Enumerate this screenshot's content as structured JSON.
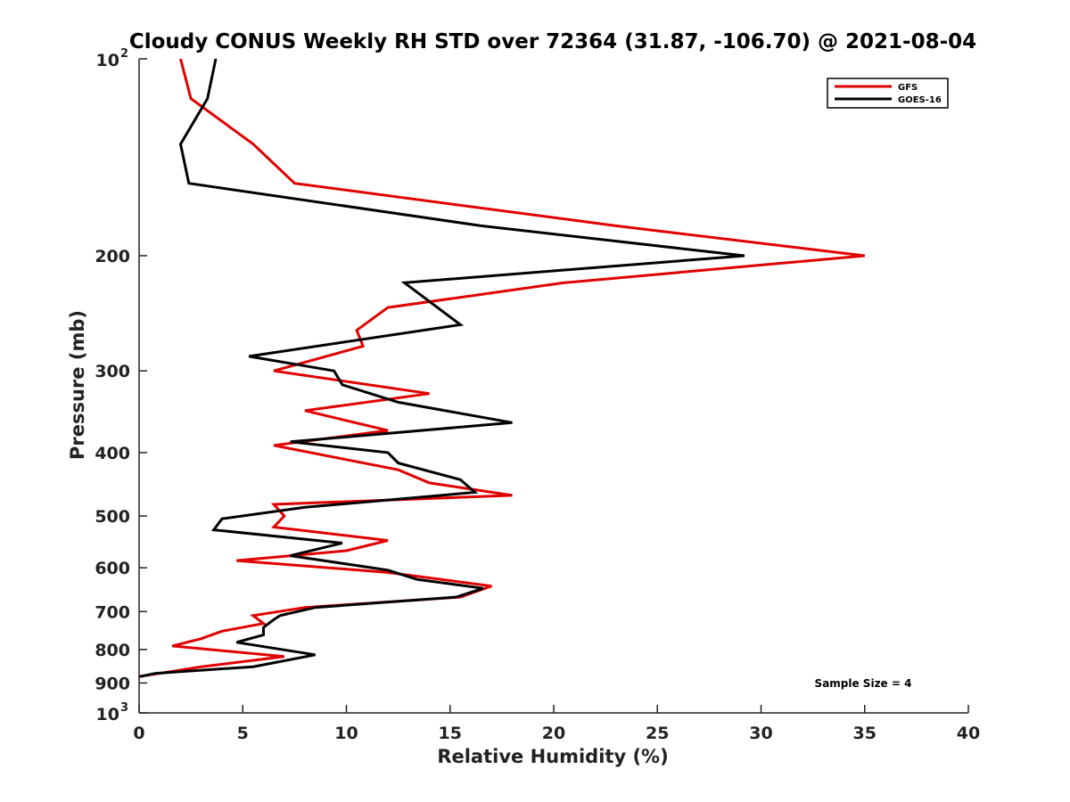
{
  "chart_data": {
    "type": "line",
    "title": "Cloudy CONUS Weekly RH STD over 72364 (31.87, -106.70) @ 2021-08-04",
    "xlabel": "Relative Humidity (%)",
    "ylabel": "Pressure (mb)",
    "xlim": [
      0,
      40
    ],
    "ylim": [
      100,
      1000
    ],
    "y_scale": "log",
    "y_reversed": true,
    "grid": false,
    "legend_position": "top-right",
    "x_ticks": [
      "0",
      "5",
      "10",
      "15",
      "20",
      "25",
      "30",
      "35",
      "40"
    ],
    "y_ticks": [
      {
        "value": 100,
        "base": "10",
        "exp": "2"
      },
      {
        "value": 200,
        "label": "200"
      },
      {
        "value": 300,
        "label": "300"
      },
      {
        "value": 400,
        "label": "400"
      },
      {
        "value": 500,
        "label": "500"
      },
      {
        "value": 600,
        "label": "600"
      },
      {
        "value": 700,
        "label": "700"
      },
      {
        "value": 800,
        "label": "800"
      },
      {
        "value": 900,
        "label": "900"
      },
      {
        "value": 1000,
        "base": "10",
        "exp": "3"
      }
    ],
    "annotation": "Sample Size = 4",
    "series": [
      {
        "name": "GFS",
        "color": "#e00000",
        "x": [
          2.0,
          2.5,
          5.5,
          7.5,
          23,
          35,
          20.5,
          12,
          10.5,
          10.8,
          6.5,
          14,
          8,
          12,
          6.5,
          10,
          12.5,
          14,
          18,
          6.5,
          7,
          6.5,
          12,
          10,
          4.7,
          12,
          17,
          15.5,
          8,
          5.5,
          6,
          4,
          3,
          1.6,
          7,
          3,
          0
        ],
        "y": [
          100,
          115,
          135,
          155,
          180,
          200,
          220,
          240,
          260,
          275,
          300,
          325,
          345,
          370,
          390,
          410,
          425,
          445,
          465,
          480,
          500,
          520,
          545,
          565,
          585,
          610,
          640,
          665,
          690,
          710,
          730,
          750,
          770,
          790,
          820,
          850,
          880
        ]
      },
      {
        "name": "GOES-16",
        "color": "#000000",
        "x": [
          3.7,
          3.3,
          2.0,
          2.4,
          16.5,
          29.2,
          12.8,
          15.5,
          5.3,
          9.4,
          9.8,
          12.5,
          18,
          7.3,
          12,
          12.5,
          15.5,
          16.2,
          8,
          4,
          3.6,
          9.8,
          7.3,
          12,
          13.4,
          16.6,
          15.3,
          8.5,
          6.8,
          6.5,
          6,
          6,
          4.7,
          8.5,
          5.5,
          0.8,
          0
        ],
        "y": [
          100,
          115,
          135,
          155,
          180,
          200,
          220,
          255,
          285,
          300,
          315,
          335,
          360,
          385,
          400,
          415,
          440,
          460,
          485,
          505,
          525,
          550,
          575,
          605,
          625,
          645,
          665,
          690,
          710,
          720,
          740,
          760,
          780,
          815,
          850,
          870,
          880
        ]
      }
    ]
  }
}
